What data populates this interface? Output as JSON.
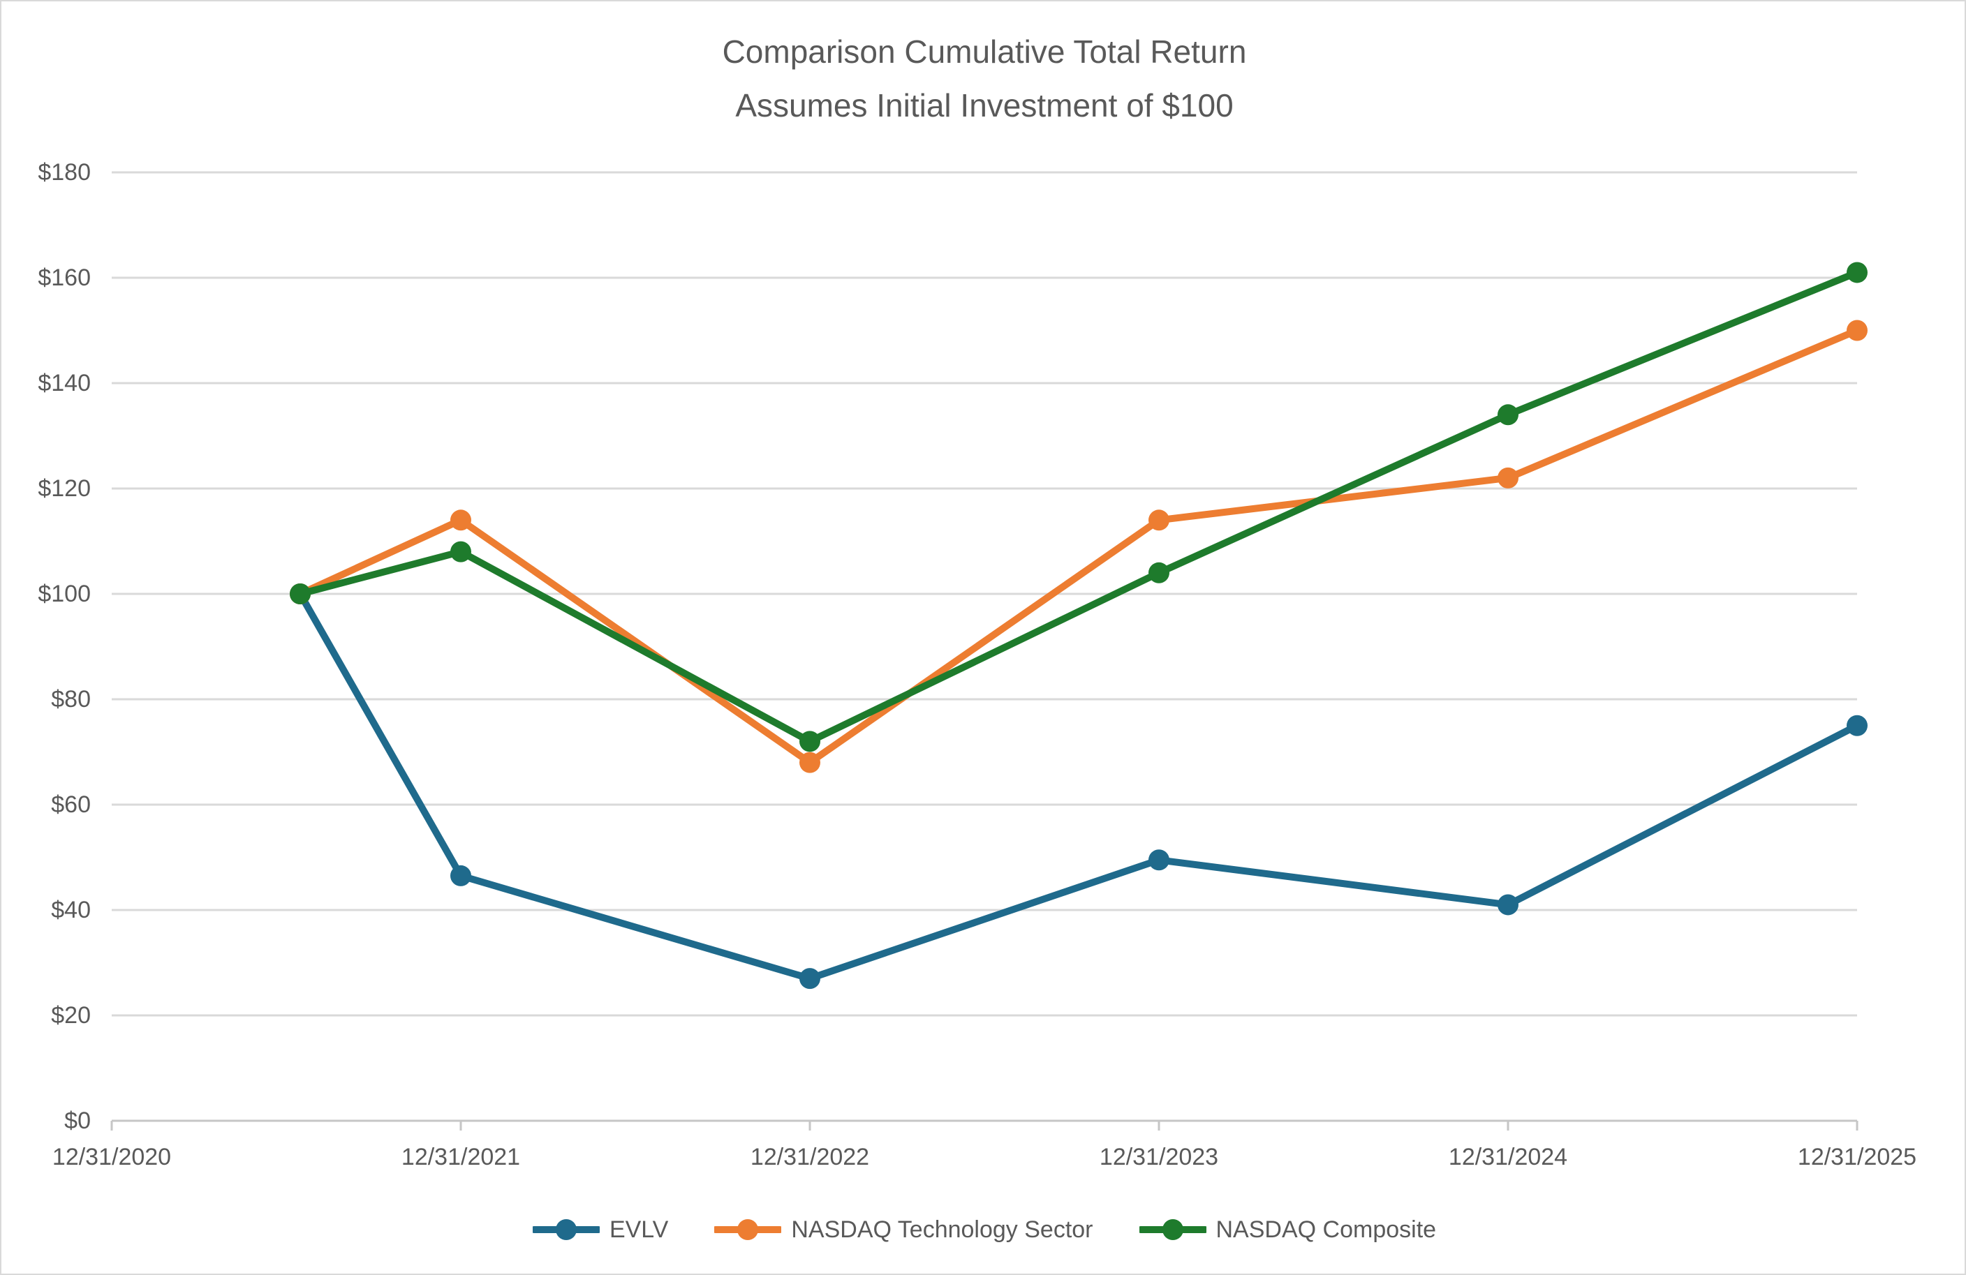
{
  "chart_data": {
    "type": "line",
    "title_line1": "Comparison Cumulative Total Return",
    "title_line2": "Assumes Initial Investment of $100",
    "x_tick_labels": [
      "12/31/2020",
      "12/31/2021",
      "12/31/2022",
      "12/31/2023",
      "12/31/2024",
      "12/31/2025"
    ],
    "y_tick_labels": [
      "$0",
      "$20",
      "$40",
      "$60",
      "$80",
      "$100",
      "$120",
      "$140",
      "$160",
      "$180"
    ],
    "ylim": [
      0,
      180
    ],
    "y_step": 20,
    "x_years_after_first_tick": [
      0.54,
      1,
      2,
      3,
      4,
      5
    ],
    "series": [
      {
        "name": "EVLV",
        "color": "#1F6A8C",
        "values": [
          100,
          46.5,
          27,
          49.5,
          41,
          75
        ]
      },
      {
        "name": "NASDAQ Technology Sector",
        "color": "#ED7D31",
        "values": [
          100,
          114,
          68,
          114,
          122,
          150
        ]
      },
      {
        "name": "NASDAQ Composite",
        "color": "#1E7B2C",
        "values": [
          100,
          108,
          72,
          104,
          134,
          161
        ]
      }
    ],
    "grid": true,
    "legend_position": "bottom"
  },
  "colors": {
    "title": "#595959",
    "axis_labels": "#595959",
    "gridline": "#D9D9D9",
    "axis_line": "#C6C6C6",
    "background": "#FFFFFF"
  }
}
